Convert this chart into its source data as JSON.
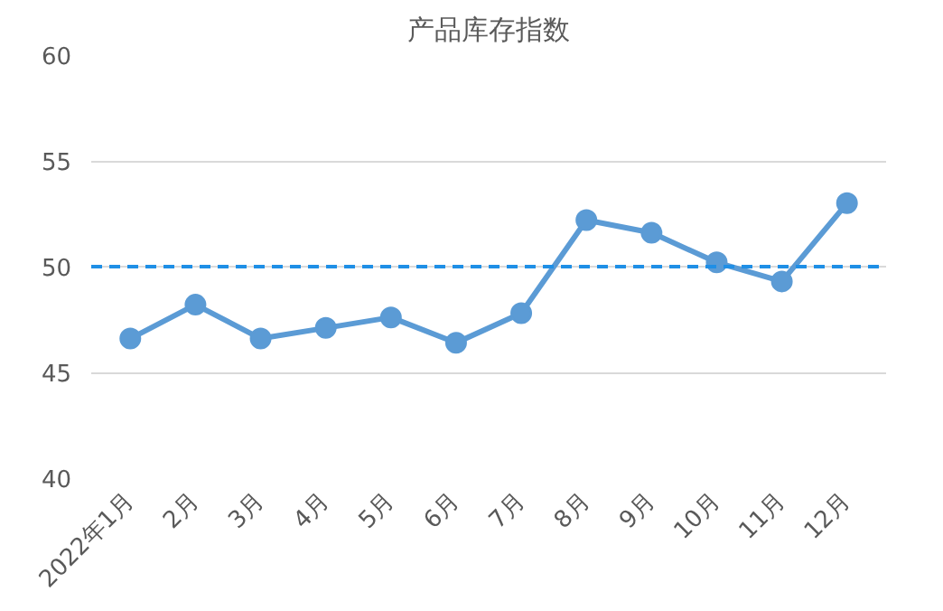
{
  "chart_data": {
    "type": "line",
    "title": "产品库存指数",
    "categories": [
      "2022年1月",
      "2月",
      "3月",
      "4月",
      "5月",
      "6月",
      "7月",
      "8月",
      "9月",
      "10月",
      "11月",
      "12月"
    ],
    "series": [
      {
        "color": "#5b9bd5",
        "values": [
          46.6,
          48.2,
          46.6,
          47.1,
          47.6,
          46.4,
          47.8,
          52.2,
          51.6,
          50.2,
          49.3,
          53.0
        ]
      }
    ],
    "ylim": [
      40,
      60
    ],
    "yticks": [
      40,
      45,
      50,
      55,
      60
    ],
    "grid": "y",
    "marker": "circle",
    "line_style": "solid",
    "ref_lines": [
      {
        "axis": "y",
        "value": 50,
        "color": "#1f8fe6",
        "line_style": "dashed"
      }
    ]
  }
}
